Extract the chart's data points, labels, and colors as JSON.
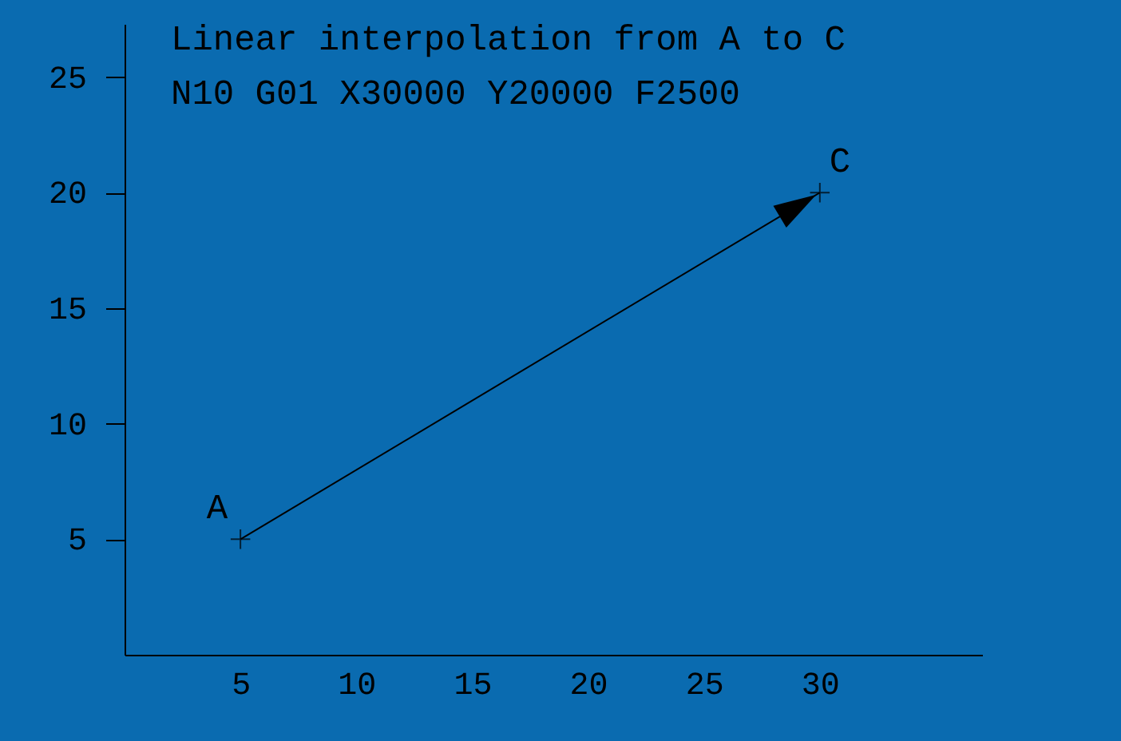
{
  "chart_data": {
    "type": "line",
    "annotations": [
      "Linear interpolation from A to C",
      "N10 G01 X30000 Y20000 F2500",
      {
        "text": "A",
        "x": 5,
        "y": 5
      },
      {
        "text": "C",
        "x": 30,
        "y": 20
      }
    ],
    "x": [
      5,
      30
    ],
    "series": [
      {
        "color": "#000000",
        "values": [
          5,
          20
        ]
      }
    ],
    "xlim": [
      0,
      37
    ],
    "ylim": [
      0,
      27.3
    ],
    "xticks": [
      5,
      10,
      15,
      20,
      25,
      30
    ],
    "yticks": [
      5,
      10,
      15,
      20,
      25
    ],
    "grid": false,
    "marker": "cross",
    "line_style": "solid"
  }
}
